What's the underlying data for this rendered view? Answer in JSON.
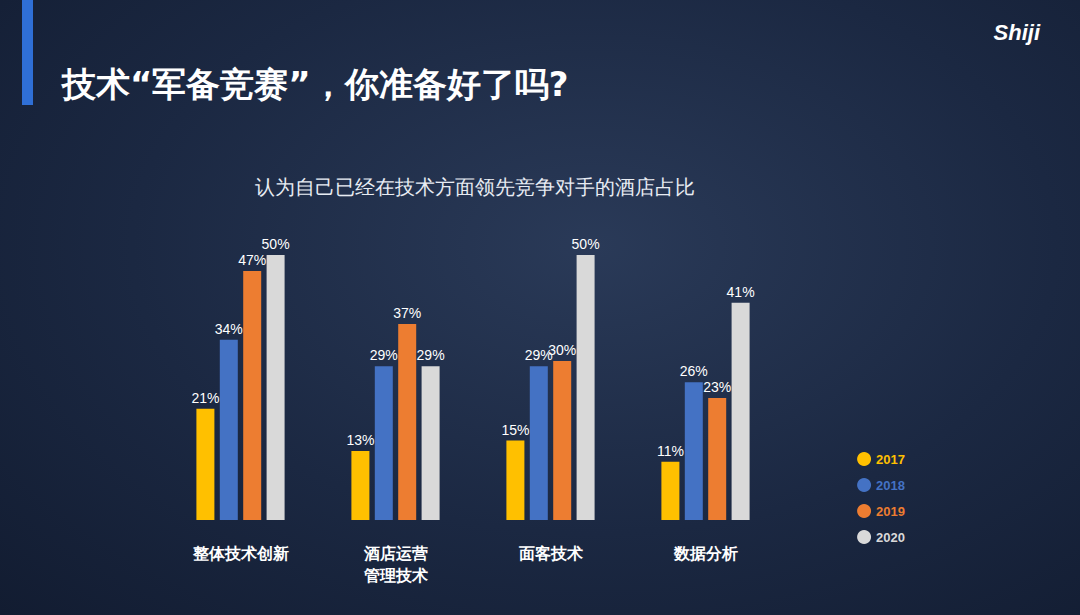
{
  "header": {
    "title": "技术“军备竞赛”，你准备好了吗?",
    "logo": "Shiji"
  },
  "chart_data": {
    "type": "bar",
    "title": "认为自己已经在技术方面领先竞争对手的酒店占比",
    "categories": [
      "整体技术创新",
      "酒店运营管理技术",
      "面客技术",
      "数据分析"
    ],
    "series": [
      {
        "name": "2017",
        "color": "#FFC000",
        "values": [
          21,
          13,
          15,
          11
        ],
        "value_labels": [
          "21%",
          "13%",
          "15%",
          "11%"
        ]
      },
      {
        "name": "2018",
        "color": "#4472C4",
        "values": [
          34,
          29,
          29,
          26
        ],
        "value_labels": [
          "34%",
          "29%",
          "29%",
          "26%"
        ]
      },
      {
        "name": "2019",
        "color": "#ED7D31",
        "values": [
          47,
          37,
          30,
          23
        ],
        "value_labels": [
          "47%",
          "37%",
          "30%",
          "23%"
        ]
      },
      {
        "name": "2020",
        "color": "#D9D9D9",
        "values": [
          50,
          29,
          50,
          41
        ],
        "value_labels": [
          "50%",
          "29%",
          "50%",
          "41%"
        ]
      }
    ],
    "ylim": [
      0,
      50
    ],
    "yticks": [
      0,
      50
    ],
    "grid": false,
    "tick_labels": "x",
    "data_labels": true,
    "legend": "lower right"
  }
}
